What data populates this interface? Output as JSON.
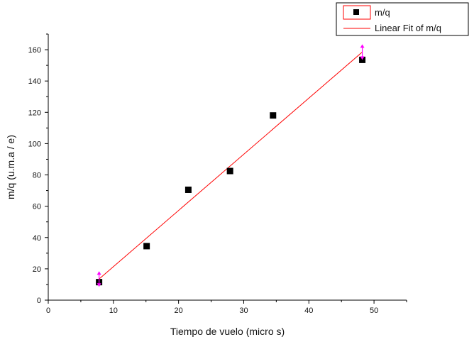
{
  "chart_data": {
    "type": "scatter",
    "xlabel": "Tiempo de vuelo (micro s)",
    "ylabel": "m/q (u.m.a / e)",
    "xlim": [
      0,
      55
    ],
    "ylim": [
      0,
      170
    ],
    "x_ticks": [
      0,
      10,
      20,
      30,
      40,
      50
    ],
    "y_ticks": [
      0,
      20,
      40,
      60,
      80,
      100,
      120,
      140,
      160
    ],
    "grid": false,
    "legend_position": "top-right",
    "series": [
      {
        "name": "m/q",
        "type": "scatter",
        "color": "#000000",
        "marker": "square",
        "x": [
          7.8,
          15.1,
          21.5,
          27.9,
          34.5,
          48.2
        ],
        "y": [
          11.5,
          34.5,
          70.5,
          82.5,
          118,
          153.5
        ]
      },
      {
        "name": "Linear Fit of m/q",
        "type": "line",
        "color": "#ff0000",
        "x": [
          7.8,
          48.2
        ],
        "y": [
          13.5,
          158.5
        ]
      }
    ],
    "error_markers": [
      {
        "x": 7.8,
        "y": 13.5,
        "color": "#ff00ff"
      },
      {
        "x": 48.2,
        "y": 158.5,
        "color": "#ff00ff"
      }
    ]
  }
}
